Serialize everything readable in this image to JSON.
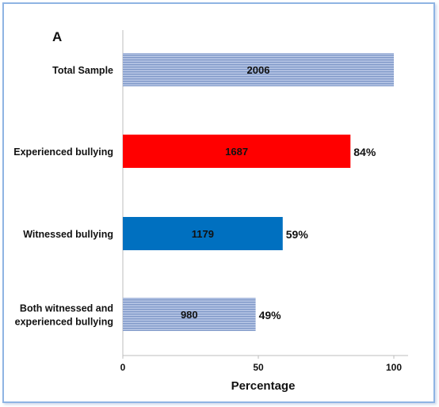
{
  "chart_data": {
    "type": "bar",
    "orientation": "horizontal",
    "panel_label": "A",
    "xlabel": "Percentage",
    "xlim": [
      0,
      100
    ],
    "xticks": [
      "0",
      "50",
      "100"
    ],
    "categories": [
      "Total Sample",
      "Experienced bullying",
      "Witnessed bullying",
      "Both witnessed and experienced bullying"
    ],
    "category_lines": [
      [
        "Total Sample"
      ],
      [
        "Experienced bullying"
      ],
      [
        "Witnessed bullying"
      ],
      [
        "Both witnessed and",
        "experienced bullying"
      ]
    ],
    "values": [
      100,
      84,
      59,
      49
    ],
    "counts": [
      "2006",
      "1687",
      "1179",
      "980"
    ],
    "percent_labels": [
      "",
      "84%",
      "59%",
      "49%"
    ],
    "bar_styles": [
      "striped",
      "solid",
      "solid",
      "striped"
    ],
    "bar_colors": [
      "#9db3da",
      "#ff0000",
      "#0070c0",
      "#9db3da"
    ],
    "grid": false
  }
}
